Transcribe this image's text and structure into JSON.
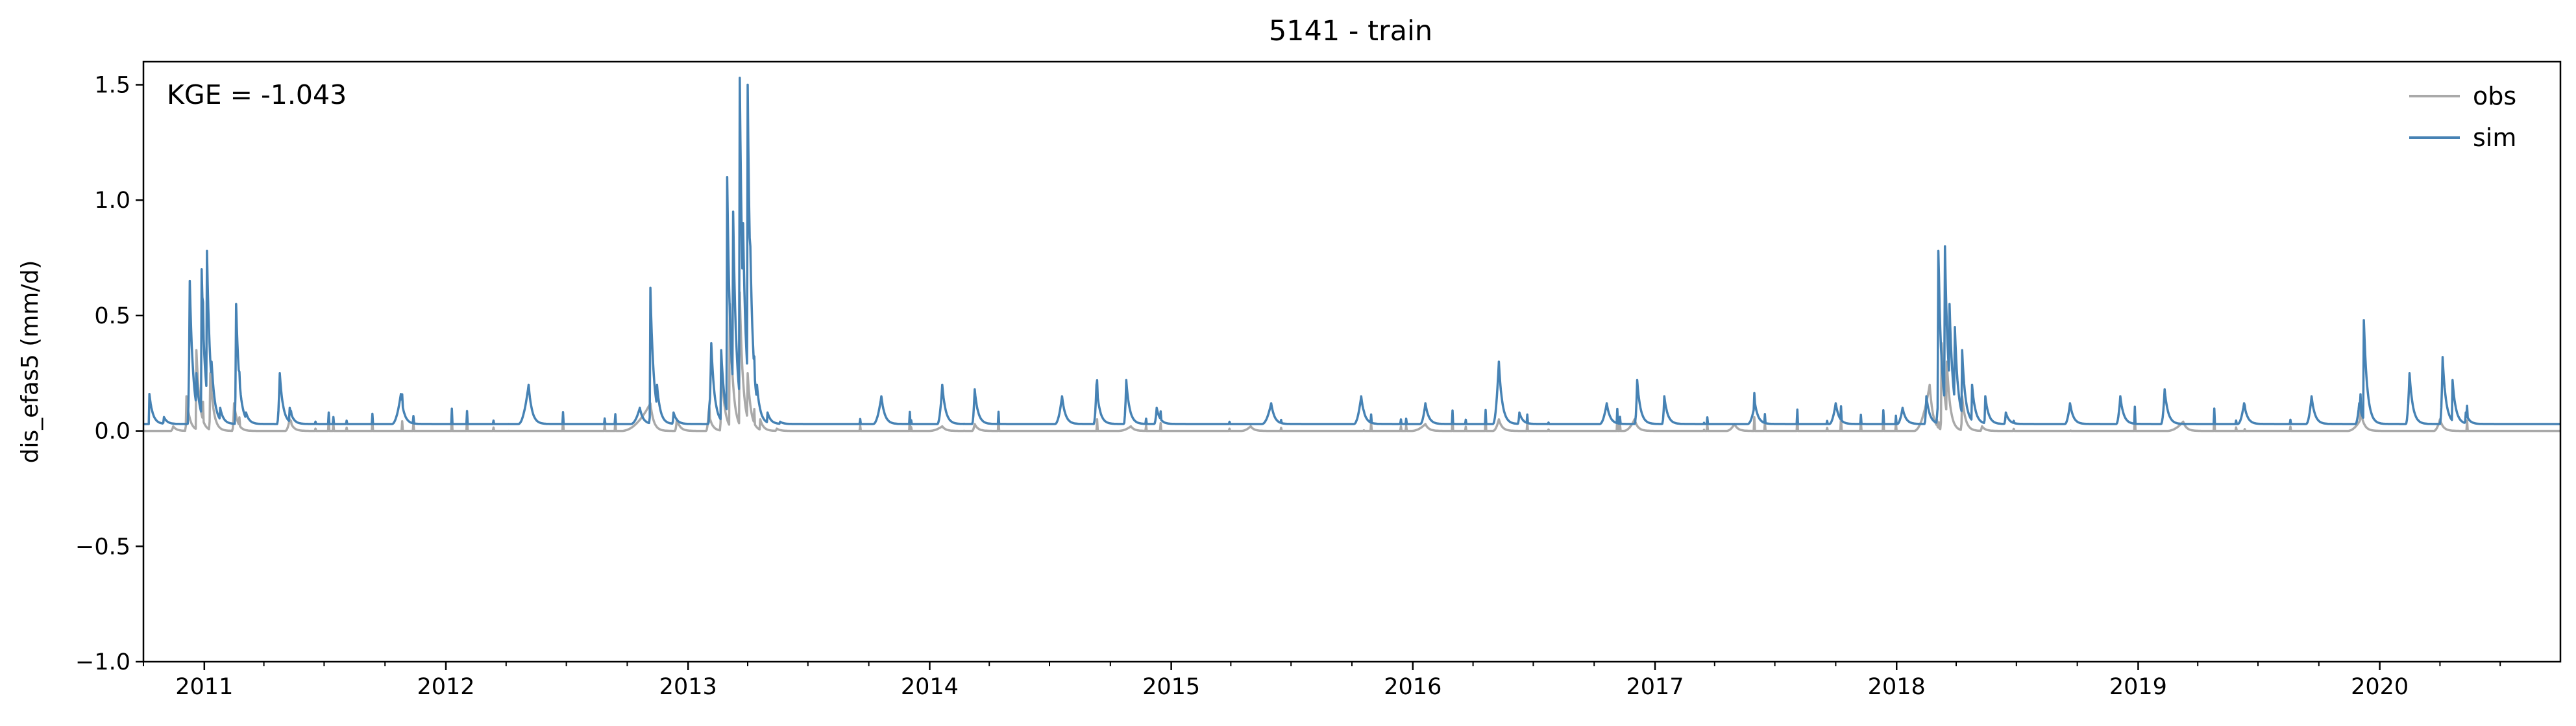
{
  "chart_data": {
    "type": "line",
    "title": "5141 - train",
    "xlabel": "",
    "ylabel": "dis_efas5 (mm/d)",
    "xlim": [
      "2010-10-01",
      "2020-09-30"
    ],
    "ylim": [
      -1.0,
      1.6
    ],
    "y_ticks": [
      -1.0,
      -0.5,
      0.0,
      0.5,
      1.0,
      1.5
    ],
    "y_tick_labels": [
      "−1.0",
      "−0.5",
      "0.0",
      "0.5",
      "1.0",
      "1.5"
    ],
    "x_ticks": [
      "2011-01-01",
      "2012-01-01",
      "2013-01-01",
      "2014-01-01",
      "2015-01-01",
      "2016-01-01",
      "2017-01-01",
      "2018-01-01",
      "2019-01-01",
      "2020-01-01"
    ],
    "x_tick_labels": [
      "2011",
      "2012",
      "2013",
      "2014",
      "2015",
      "2016",
      "2017",
      "2018",
      "2019",
      "2020"
    ],
    "grid": false,
    "legend": {
      "placement": "top-right",
      "entries": [
        "obs",
        "sim"
      ]
    },
    "annotation": "KGE = -1.043",
    "series": [
      {
        "name": "obs",
        "color": "#a9a9a9",
        "baseline": 0.0,
        "x": [
          "2010-10-01",
          "2010-11-15",
          "2010-12-05",
          "2010-12-20",
          "2011-01-10",
          "2011-02-15",
          "2011-05-10",
          "2012-11-05",
          "2012-12-15",
          "2013-02-01",
          "2013-02-20",
          "2013-03-05",
          "2013-03-20",
          "2013-04-01",
          "2013-04-20",
          "2013-05-15",
          "2014-01-20",
          "2014-03-10",
          "2014-11-01",
          "2015-05-01",
          "2016-01-20",
          "2016-05-10",
          "2016-12-01",
          "2017-05-01",
          "2018-02-20",
          "2018-03-10",
          "2018-03-18",
          "2018-04-10",
          "2018-05-10",
          "2019-03-10",
          "2019-12-05",
          "2020-04-01",
          "2020-09-30"
        ],
        "y": [
          0.0,
          0.02,
          0.15,
          0.35,
          0.25,
          0.12,
          0.05,
          0.12,
          0.05,
          0.08,
          0.3,
          0.55,
          0.6,
          0.25,
          0.05,
          0.01,
          0.02,
          0.03,
          0.02,
          0.02,
          0.03,
          0.05,
          0.05,
          0.03,
          0.2,
          0.38,
          0.3,
          0.15,
          0.02,
          0.04,
          0.06,
          0.05,
          0.0
        ]
      },
      {
        "name": "sim",
        "color": "#4682b4",
        "baseline": 0.03,
        "x": [
          "2010-10-01",
          "2010-10-10",
          "2010-11-01",
          "2010-12-10",
          "2010-12-20",
          "2010-12-28",
          "2011-01-05",
          "2011-01-12",
          "2011-01-25",
          "2011-02-18",
          "2011-03-05",
          "2011-04-25",
          "2011-05-10",
          "2011-10-25",
          "2012-05-05",
          "2012-10-20",
          "2012-11-05",
          "2012-11-15",
          "2012-12-10",
          "2013-02-05",
          "2013-02-20",
          "2013-03-01",
          "2013-03-10",
          "2013-03-20",
          "2013-03-25",
          "2013-04-01",
          "2013-04-05",
          "2013-04-15",
          "2013-05-01",
          "2013-05-20",
          "2013-10-20",
          "2014-01-20",
          "2014-03-10",
          "2014-07-20",
          "2014-09-10",
          "2014-10-25",
          "2014-12-10",
          "2015-06-01",
          "2015-10-15",
          "2016-01-20",
          "2016-05-10",
          "2016-06-10",
          "2016-10-20",
          "2016-12-05",
          "2017-01-15",
          "2017-06-01",
          "2017-10-01",
          "2018-01-10",
          "2018-02-15",
          "2018-03-05",
          "2018-03-15",
          "2018-03-22",
          "2018-03-30",
          "2018-04-10",
          "2018-04-25",
          "2018-05-15",
          "2018-06-15",
          "2018-09-20",
          "2018-12-05",
          "2019-02-10",
          "2019-06-10",
          "2019-09-20",
          "2019-12-01",
          "2019-12-08",
          "2020-02-15",
          "2020-04-05",
          "2020-04-20",
          "2020-05-10",
          "2020-09-30"
        ],
        "y": [
          0.03,
          0.16,
          0.06,
          0.65,
          0.25,
          0.7,
          0.78,
          0.3,
          0.1,
          0.55,
          0.08,
          0.25,
          0.1,
          0.16,
          0.2,
          0.1,
          0.62,
          0.2,
          0.08,
          0.38,
          0.35,
          1.1,
          0.95,
          1.53,
          0.9,
          1.5,
          0.8,
          0.2,
          0.08,
          0.04,
          0.15,
          0.2,
          0.18,
          0.15,
          0.2,
          0.22,
          0.1,
          0.12,
          0.15,
          0.12,
          0.3,
          0.08,
          0.12,
          0.22,
          0.15,
          0.12,
          0.12,
          0.1,
          0.15,
          0.78,
          0.8,
          0.55,
          0.45,
          0.35,
          0.2,
          0.15,
          0.08,
          0.12,
          0.15,
          0.18,
          0.12,
          0.15,
          0.12,
          0.48,
          0.25,
          0.32,
          0.22,
          0.08,
          0.03
        ]
      }
    ]
  }
}
